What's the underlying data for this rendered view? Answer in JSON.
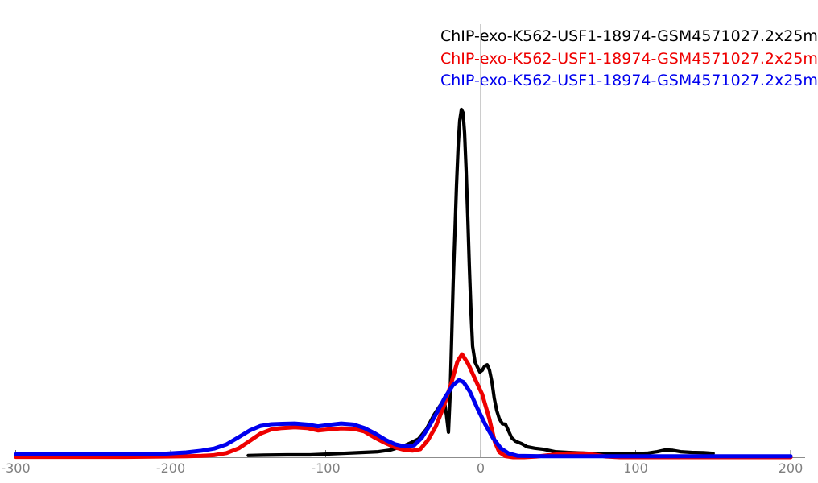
{
  "legend": {
    "entries": [
      {
        "label": "ChIP-exo-K562-USF1-18974-GSM4571027.2x25m",
        "color": "#000000"
      },
      {
        "label": "ChIP-exo-K562-USF1-18974-GSM4571027.2x25m",
        "color": "#ee0000"
      },
      {
        "label": "ChIP-exo-K562-USF1-18974-GSM4571027.2x25m",
        "color": "#0000ee"
      }
    ]
  },
  "chart_data": {
    "type": "line",
    "title": "",
    "xlabel": "",
    "ylabel": "",
    "xlim": [
      -300,
      200
    ],
    "ylim": [
      0,
      1.25
    ],
    "grid": false,
    "legend_position": "top-right",
    "zero_line_x": 0,
    "colors": {
      "axis": "#8c8c8c",
      "tick": "#666666",
      "tick_label": "#7f7f7f",
      "zero_line": "#999999"
    },
    "x_ticks": [
      {
        "value": -300,
        "label": "-300"
      },
      {
        "value": -200,
        "label": "-200"
      },
      {
        "value": -100,
        "label": "-100"
      },
      {
        "value": 0,
        "label": "0"
      },
      {
        "value": 100,
        "label": "100"
      },
      {
        "value": 200,
        "label": "200"
      }
    ],
    "series": [
      {
        "id": "black",
        "name": "ChIP-exo-K562-USF1-18974-GSM4571027.2x25m",
        "color": "#000000",
        "stroke_width": 4.2,
        "points": [
          [
            -150,
            0.005
          ],
          [
            -140,
            0.006
          ],
          [
            -125,
            0.007
          ],
          [
            -110,
            0.007
          ],
          [
            -95,
            0.01
          ],
          [
            -80,
            0.013
          ],
          [
            -66,
            0.016
          ],
          [
            -58,
            0.021
          ],
          [
            -50,
            0.032
          ],
          [
            -45,
            0.042
          ],
          [
            -40,
            0.053
          ],
          [
            -35,
            0.081
          ],
          [
            -30,
            0.123
          ],
          [
            -26,
            0.15
          ],
          [
            -23.5,
            0.164
          ],
          [
            -22,
            0.12
          ],
          [
            -20.8,
            0.072
          ],
          [
            -19.7,
            0.181
          ],
          [
            -18.7,
            0.343
          ],
          [
            -17.7,
            0.505
          ],
          [
            -16.6,
            0.644
          ],
          [
            -15.6,
            0.782
          ],
          [
            -14.5,
            0.898
          ],
          [
            -13.5,
            0.968
          ],
          [
            -12.4,
            1.0
          ],
          [
            -11.4,
            0.991
          ],
          [
            -10.4,
            0.933
          ],
          [
            -9.4,
            0.829
          ],
          [
            -8.3,
            0.69
          ],
          [
            -7.3,
            0.551
          ],
          [
            -6.2,
            0.412
          ],
          [
            -5.2,
            0.319
          ],
          [
            -3.6,
            0.273
          ],
          [
            -2.1,
            0.259
          ],
          [
            -0.5,
            0.245
          ],
          [
            1.0,
            0.25
          ],
          [
            2.6,
            0.262
          ],
          [
            4.2,
            0.266
          ],
          [
            5.7,
            0.25
          ],
          [
            7.3,
            0.215
          ],
          [
            8.8,
            0.169
          ],
          [
            10.4,
            0.134
          ],
          [
            12,
            0.111
          ],
          [
            14,
            0.096
          ],
          [
            16,
            0.095
          ],
          [
            18,
            0.076
          ],
          [
            20,
            0.056
          ],
          [
            22.5,
            0.046
          ],
          [
            26.5,
            0.039
          ],
          [
            30,
            0.03
          ],
          [
            35,
            0.026
          ],
          [
            40.5,
            0.023
          ],
          [
            48,
            0.016
          ],
          [
            56,
            0.014
          ],
          [
            66.5,
            0.012
          ],
          [
            77,
            0.01
          ],
          [
            87,
            0.009
          ],
          [
            98,
            0.01
          ],
          [
            108,
            0.012
          ],
          [
            114,
            0.016
          ],
          [
            119,
            0.021
          ],
          [
            124,
            0.02
          ],
          [
            129,
            0.016
          ],
          [
            136,
            0.014
          ],
          [
            144,
            0.013
          ],
          [
            150,
            0.011
          ]
        ]
      },
      {
        "id": "red",
        "name": "ChIP-exo-K562-USF1-18974-GSM4571027.2x25m",
        "color": "#ee0000",
        "stroke_width": 5,
        "points": [
          [
            -300,
            0.001
          ],
          [
            -260,
            0.001
          ],
          [
            -230,
            0.001
          ],
          [
            -205,
            0.002
          ],
          [
            -190,
            0.003
          ],
          [
            -180,
            0.004
          ],
          [
            -172,
            0.006
          ],
          [
            -164,
            0.012
          ],
          [
            -156,
            0.026
          ],
          [
            -149,
            0.047
          ],
          [
            -142,
            0.068
          ],
          [
            -135,
            0.08
          ],
          [
            -128,
            0.084
          ],
          [
            -120,
            0.086
          ],
          [
            -112,
            0.084
          ],
          [
            -105,
            0.077
          ],
          [
            -98,
            0.08
          ],
          [
            -90,
            0.083
          ],
          [
            -82,
            0.082
          ],
          [
            -75,
            0.074
          ],
          [
            -69,
            0.058
          ],
          [
            -62,
            0.042
          ],
          [
            -55,
            0.028
          ],
          [
            -49,
            0.021
          ],
          [
            -44,
            0.019
          ],
          [
            -39,
            0.023
          ],
          [
            -34,
            0.049
          ],
          [
            -29,
            0.088
          ],
          [
            -24,
            0.144
          ],
          [
            -19,
            0.212
          ],
          [
            -15,
            0.275
          ],
          [
            -12,
            0.296
          ],
          [
            -8,
            0.268
          ],
          [
            -4,
            0.229
          ],
          [
            1,
            0.181
          ],
          [
            5.5,
            0.112
          ],
          [
            9,
            0.046
          ],
          [
            12,
            0.015
          ],
          [
            16,
            0.003
          ],
          [
            21,
            0.0
          ],
          [
            28,
            0.0
          ],
          [
            36,
            0.002
          ],
          [
            46,
            0.007
          ],
          [
            56,
            0.011
          ],
          [
            66,
            0.011
          ],
          [
            74,
            0.007
          ],
          [
            81,
            0.002
          ],
          [
            90,
            0.0
          ],
          [
            120,
            0.0
          ],
          [
            160,
            0.0
          ],
          [
            200,
            0.0
          ]
        ]
      },
      {
        "id": "blue",
        "name": "ChIP-exo-K562-USF1-18974-GSM4571027.2x25m",
        "color": "#0000ee",
        "stroke_width": 5,
        "points": [
          [
            -300,
            0.008
          ],
          [
            -260,
            0.008
          ],
          [
            -230,
            0.009
          ],
          [
            -205,
            0.01
          ],
          [
            -190,
            0.014
          ],
          [
            -180,
            0.019
          ],
          [
            -172,
            0.025
          ],
          [
            -164,
            0.037
          ],
          [
            -156,
            0.058
          ],
          [
            -149,
            0.077
          ],
          [
            -142,
            0.09
          ],
          [
            -135,
            0.095
          ],
          [
            -128,
            0.096
          ],
          [
            -120,
            0.097
          ],
          [
            -112,
            0.094
          ],
          [
            -105,
            0.089
          ],
          [
            -98,
            0.093
          ],
          [
            -90,
            0.097
          ],
          [
            -82,
            0.094
          ],
          [
            -75,
            0.084
          ],
          [
            -68,
            0.068
          ],
          [
            -61,
            0.049
          ],
          [
            -55,
            0.037
          ],
          [
            -49,
            0.031
          ],
          [
            -43,
            0.034
          ],
          [
            -38,
            0.056
          ],
          [
            -33,
            0.091
          ],
          [
            -28,
            0.13
          ],
          [
            -23,
            0.172
          ],
          [
            -18,
            0.207
          ],
          [
            -14,
            0.222
          ],
          [
            -11,
            0.216
          ],
          [
            -7,
            0.189
          ],
          [
            -2,
            0.14
          ],
          [
            3,
            0.094
          ],
          [
            8,
            0.055
          ],
          [
            13,
            0.026
          ],
          [
            18,
            0.011
          ],
          [
            24,
            0.004
          ],
          [
            40,
            0.003
          ],
          [
            80,
            0.003
          ],
          [
            120,
            0.003
          ],
          [
            160,
            0.003
          ],
          [
            200,
            0.003
          ]
        ]
      }
    ]
  }
}
